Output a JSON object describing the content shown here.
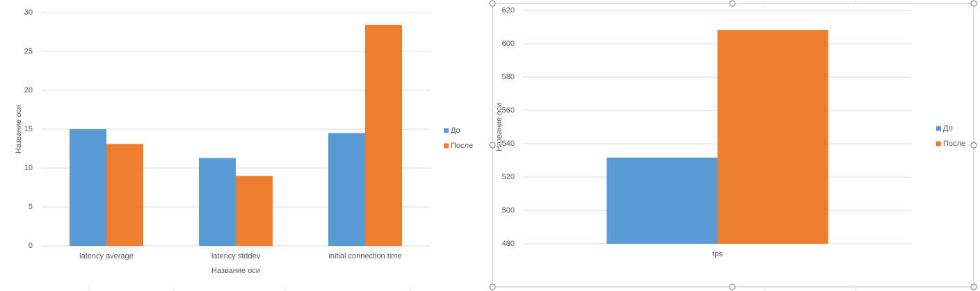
{
  "chart_data": [
    {
      "type": "bar",
      "y_axis_title": "Название оси",
      "x_axis_title": "Название оси",
      "categories": [
        "latency average",
        "latency stddev",
        "initial connection time"
      ],
      "series": [
        {
          "name": "До",
          "color": "#5b9bd5",
          "values": [
            15.0,
            11.3,
            14.5
          ]
        },
        {
          "name": "После",
          "color": "#ed7d31",
          "values": [
            13.1,
            9.0,
            28.4
          ]
        }
      ],
      "ylim": [
        0,
        30
      ],
      "yticks": [
        0,
        5,
        10,
        15,
        20,
        25,
        30
      ],
      "grid": true,
      "legend": "right"
    },
    {
      "type": "bar",
      "y_axis_title": "Название оси",
      "categories": [
        "tps"
      ],
      "series": [
        {
          "name": "До",
          "color": "#5b9bd5",
          "values": [
            531.7
          ]
        },
        {
          "name": "После",
          "color": "#ed7d31",
          "values": [
            608.3
          ]
        }
      ],
      "ylim": [
        480,
        620
      ],
      "yticks": [
        480,
        500,
        520,
        540,
        560,
        580,
        600,
        620
      ],
      "grid": true,
      "legend": "right"
    }
  ]
}
